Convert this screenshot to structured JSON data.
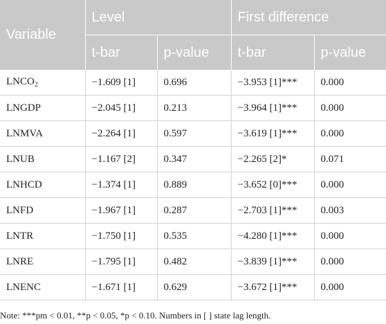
{
  "header": {
    "variable": "Variable",
    "level": "Level",
    "first_difference": "First difference",
    "tbar": "t-bar",
    "pvalue": "p-value"
  },
  "rows": [
    {
      "variable": "LNCO",
      "variable_sub": "2",
      "level_tbar": "−1.609 [1]",
      "level_p": "0.696",
      "fd_tbar": "−3.953 [1]***",
      "fd_p": "0.000"
    },
    {
      "variable": "LNGDP",
      "variable_sub": "",
      "level_tbar": "−2.045 [1]",
      "level_p": "0.213",
      "fd_tbar": "−3.964 [1]***",
      "fd_p": "0.000"
    },
    {
      "variable": "LNMVA",
      "variable_sub": "",
      "level_tbar": "−2.264 [1]",
      "level_p": "0.597",
      "fd_tbar": "−3.619 [1]***",
      "fd_p": "0.000"
    },
    {
      "variable": "LNUB",
      "variable_sub": "",
      "level_tbar": "−1.167 [2]",
      "level_p": "0.347",
      "fd_tbar": "−2.265 [2]*",
      "fd_p": "0.071"
    },
    {
      "variable": "LNHCD",
      "variable_sub": "",
      "level_tbar": "−1.374 [1]",
      "level_p": "0.889",
      "fd_tbar": "−3.652 [0]***",
      "fd_p": "0.000"
    },
    {
      "variable": "LNFD",
      "variable_sub": "",
      "level_tbar": "−1.967 [1]",
      "level_p": "0.287",
      "fd_tbar": "−2.703 [1]***",
      "fd_p": "0.003"
    },
    {
      "variable": "LNTR",
      "variable_sub": "",
      "level_tbar": "−1.750 [1]",
      "level_p": "0.535",
      "fd_tbar": "−4.280 [1]***",
      "fd_p": "0.000"
    },
    {
      "variable": "LNRE",
      "variable_sub": "",
      "level_tbar": "−1.795 [1]",
      "level_p": "0.482",
      "fd_tbar": "−3.839 [1]***",
      "fd_p": "0.000"
    },
    {
      "variable": "LNENC",
      "variable_sub": "",
      "level_tbar": "−1.671 [1]",
      "level_p": "0.629",
      "fd_tbar": "−3.672 [1]***",
      "fd_p": "0.000"
    }
  ],
  "footnote": "Note: ***pm < 0.01, **p < 0.05, *p < 0.10. Numbers in [ ] state lag length."
}
